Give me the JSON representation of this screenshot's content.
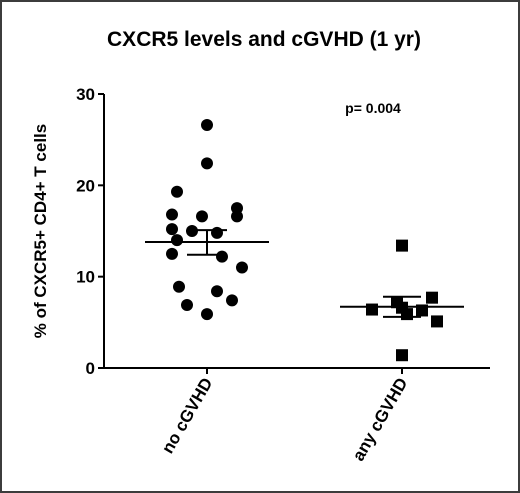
{
  "chart_data": {
    "type": "scatter",
    "title": "CXCR5 levels and cGVHD (1 yr)",
    "xlabel": "",
    "ylabel": "% of CXCR5+ CD4+  T cells",
    "ylim": [
      0,
      30
    ],
    "yticks": [
      "0",
      "10",
      "20",
      "30"
    ],
    "categories": [
      "no cGVHD",
      "any cGVHD"
    ],
    "groups": [
      {
        "category": "no cGVHD",
        "marker": "circle",
        "values": [
          26.6,
          22.4,
          19.3,
          17.5,
          16.8,
          16.6,
          16.6,
          15.2,
          15.0,
          14.8,
          14.0,
          12.5,
          12.2,
          11.0,
          8.9,
          8.4,
          7.4,
          6.9,
          5.9
        ],
        "mean": 13.8,
        "sem_upper": 15.1,
        "sem_lower": 12.4
      },
      {
        "category": "any cGVHD",
        "marker": "square",
        "values": [
          13.4,
          7.7,
          7.2,
          6.6,
          6.4,
          6.3,
          5.9,
          5.1,
          1.4
        ],
        "mean": 6.7,
        "sem_upper": 7.8,
        "sem_lower": 5.6
      }
    ],
    "annotations": [
      "p= 0.004"
    ],
    "grid": false,
    "legend": "none"
  }
}
